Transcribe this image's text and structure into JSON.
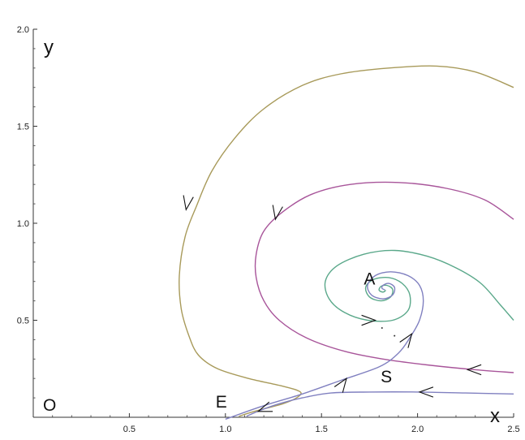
{
  "chart_data": {
    "type": "line",
    "title": "",
    "xlabel": "x",
    "ylabel": "y",
    "xlim": [
      0,
      2.5
    ],
    "ylim": [
      0,
      2.0
    ],
    "grid": false,
    "x_ticks": [
      {
        "value": 0.5,
        "label": "0.5"
      },
      {
        "value": 1.0,
        "label": "1.0"
      },
      {
        "value": 1.5,
        "label": "1.5"
      },
      {
        "value": 2.0,
        "label": "2.0"
      },
      {
        "value": 2.5,
        "label": "2.5"
      }
    ],
    "y_ticks": [
      {
        "value": 0.5,
        "label": "0.5"
      },
      {
        "value": 1.0,
        "label": "1.0"
      },
      {
        "value": 1.5,
        "label": "1.5"
      },
      {
        "value": 2.0,
        "label": "2.0"
      }
    ],
    "points": [
      {
        "label": "O",
        "x": 0.0,
        "y": 0.0
      },
      {
        "label": "E",
        "x": 1.0,
        "y": 0.0
      },
      {
        "label": "A",
        "x": 1.83,
        "y": 0.66
      },
      {
        "label": "S",
        "x": 1.85,
        "y": 0.28
      }
    ],
    "series": [
      {
        "color": "#a89a5a",
        "points": [
          [
            2.5,
            1.7
          ],
          [
            2.3,
            1.78
          ],
          [
            2.1,
            1.81
          ],
          [
            1.85,
            1.8
          ],
          [
            1.6,
            1.77
          ],
          [
            1.4,
            1.71
          ],
          [
            1.2,
            1.59
          ],
          [
            1.05,
            1.44
          ],
          [
            0.93,
            1.27
          ],
          [
            0.85,
            1.09
          ],
          [
            0.79,
            0.93
          ],
          [
            0.76,
            0.73
          ],
          [
            0.77,
            0.56
          ],
          [
            0.81,
            0.42
          ],
          [
            0.86,
            0.32
          ],
          [
            0.96,
            0.25
          ],
          [
            1.12,
            0.2
          ],
          [
            1.3,
            0.16
          ],
          [
            1.39,
            0.13
          ],
          [
            1.37,
            0.1
          ],
          [
            1.3,
            0.07
          ],
          [
            1.15,
            0.03
          ],
          [
            1.07,
            0.005
          ]
        ],
        "arrows": [
          {
            "x": 0.795,
            "y": 1.07,
            "dir": "down"
          }
        ]
      },
      {
        "color": "#a8559a",
        "points": [
          [
            2.5,
            1.02
          ],
          [
            2.35,
            1.12
          ],
          [
            2.15,
            1.18
          ],
          [
            1.9,
            1.21
          ],
          [
            1.65,
            1.2
          ],
          [
            1.45,
            1.15
          ],
          [
            1.3,
            1.06
          ],
          [
            1.2,
            0.96
          ],
          [
            1.16,
            0.84
          ],
          [
            1.16,
            0.72
          ],
          [
            1.2,
            0.6
          ],
          [
            1.28,
            0.5
          ],
          [
            1.42,
            0.41
          ],
          [
            1.62,
            0.34
          ],
          [
            1.82,
            0.3
          ],
          [
            2.05,
            0.27
          ],
          [
            2.3,
            0.245
          ],
          [
            2.5,
            0.23
          ]
        ],
        "arrows": [
          {
            "x": 1.26,
            "y": 1.02,
            "dir": "down"
          },
          {
            "x": 2.26,
            "y": 0.245,
            "dir": "left"
          }
        ]
      },
      {
        "color": "#5aa88a",
        "points": [
          [
            2.5,
            0.5
          ],
          [
            2.43,
            0.58
          ],
          [
            2.33,
            0.69
          ],
          [
            2.2,
            0.77
          ],
          [
            2.05,
            0.83
          ],
          [
            1.88,
            0.86
          ],
          [
            1.72,
            0.84
          ],
          [
            1.58,
            0.78
          ],
          [
            1.52,
            0.7
          ],
          [
            1.54,
            0.61
          ],
          [
            1.62,
            0.54
          ],
          [
            1.74,
            0.5
          ],
          [
            1.87,
            0.5
          ],
          [
            1.95,
            0.55
          ],
          [
            1.96,
            0.63
          ],
          [
            1.92,
            0.69
          ],
          [
            1.85,
            0.72
          ],
          [
            1.77,
            0.71
          ],
          [
            1.73,
            0.67
          ],
          [
            1.75,
            0.62
          ],
          [
            1.81,
            0.6
          ],
          [
            1.86,
            0.62
          ],
          [
            1.87,
            0.66
          ],
          [
            1.84,
            0.68
          ],
          [
            1.81,
            0.675
          ],
          [
            1.8,
            0.655
          ],
          [
            1.82,
            0.645
          ],
          [
            1.835,
            0.655
          ]
        ],
        "arrows": []
      },
      {
        "color": "#8080c0",
        "points": [
          [
            1.0,
            -0.01
          ],
          [
            1.2,
            0.06
          ],
          [
            1.4,
            0.12
          ],
          [
            1.6,
            0.19
          ],
          [
            1.8,
            0.26
          ],
          [
            1.9,
            0.33
          ],
          [
            1.96,
            0.41
          ],
          [
            2.01,
            0.5
          ],
          [
            2.03,
            0.6
          ],
          [
            2.01,
            0.68
          ],
          [
            1.95,
            0.73
          ],
          [
            1.86,
            0.75
          ],
          [
            1.78,
            0.73
          ],
          [
            1.74,
            0.68
          ],
          [
            1.76,
            0.63
          ],
          [
            1.82,
            0.61
          ],
          [
            1.87,
            0.63
          ],
          [
            1.88,
            0.67
          ],
          [
            1.85,
            0.69
          ],
          [
            1.82,
            0.68
          ],
          [
            1.815,
            0.665
          ],
          [
            1.83,
            0.657
          ]
        ],
        "arrows": [
          {
            "x": 1.63,
            "y": 0.2,
            "dir": "up-right"
          },
          {
            "x": 1.97,
            "y": 0.43,
            "dir": "up-right"
          }
        ]
      },
      {
        "color": "#8080c0",
        "points": [
          [
            2.5,
            0.12
          ],
          [
            2.25,
            0.125
          ],
          [
            2.0,
            0.13
          ],
          [
            1.75,
            0.13
          ],
          [
            1.55,
            0.125
          ],
          [
            1.4,
            0.1
          ],
          [
            1.28,
            0.07
          ],
          [
            1.18,
            0.035
          ],
          [
            1.11,
            0.005
          ]
        ],
        "arrows": [
          {
            "x": 2.01,
            "y": 0.13,
            "dir": "left"
          },
          {
            "x": 1.17,
            "y": 0.03,
            "dir": "left-down"
          }
        ]
      }
    ],
    "extra_arrows": [
      {
        "x": 1.78,
        "y": 0.5,
        "dir": "right"
      }
    ]
  }
}
